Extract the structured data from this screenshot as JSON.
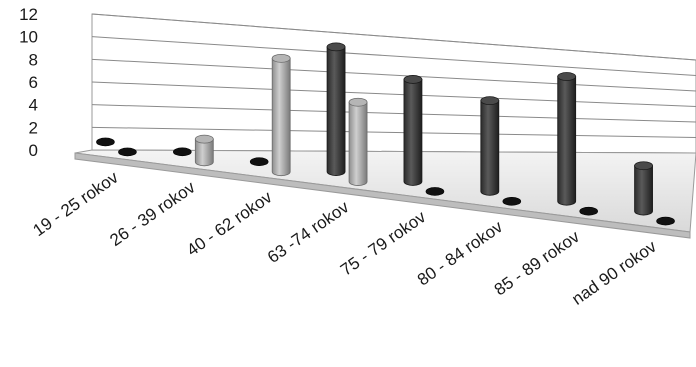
{
  "chart_data": {
    "type": "bar",
    "style": "3d-cylinder",
    "categories": [
      "19 - 25 rokov",
      "26 - 39 rokov",
      "40 - 62 rokov",
      "63 -74 rokov",
      "75 - 79 rokov",
      "80 - 84 rokov",
      "85 - 89 rokov",
      "nad 90 rokov"
    ],
    "series": [
      {
        "values": [
          0,
          0,
          0,
          11,
          9,
          8,
          11,
          4
        ],
        "color": "#3f3f3f"
      },
      {
        "values": [
          0,
          2,
          10,
          7,
          0,
          0,
          0,
          0
        ],
        "color": "#a9a9a9"
      }
    ],
    "y_ticks": [
      "0",
      "2",
      "4",
      "6",
      "8",
      "10",
      "12"
    ],
    "ylim": [
      0,
      12
    ],
    "grid": true,
    "legend": "none"
  }
}
